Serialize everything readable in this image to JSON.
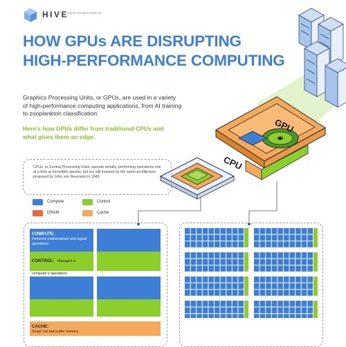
{
  "brand": {
    "name": "HIVE",
    "subtitle": "DIGITAL TECHNOLOGIES LTD"
  },
  "headline": {
    "line1": "HOW GPUs ARE DISRUPTING",
    "line2": "HIGH-PERFORMANCE COMPUTING"
  },
  "intro": "Graphics Processing Units, or GPUs, are used in a variety of high-performance computing applications, from AI training to zooplankton classification.",
  "highlight": "Here's how GPUs differ from traditional CPUs and what gives them an edge.",
  "illustration": {
    "gpu_label": "GPU",
    "cpu_label": "CPU"
  },
  "cpu_note": "CPUs, or Central Processing Units, operate serially, performing operations one at a time at incredible speeds, but are still inspired by the same architecture proposed by John von Neumann in 1945.",
  "legend": {
    "compute": "Compute",
    "control": "Control",
    "dram": "DRAM",
    "cache": "Cache"
  },
  "cpu_diagram": {
    "compute_title": "COMPUTE:",
    "compute_text": "Performs mathematical and logical operations",
    "control_title": "CONTROL:",
    "control_text": "Manages a computer's operations",
    "cache_title": "CACHE:",
    "cache_text": "Small, but fast buffer memory"
  },
  "colors": {
    "compute": "#3d7fd6",
    "control": "#8ccf2c",
    "dram": "#e8683a",
    "cache": "#f5a95a",
    "title": "#3d7fd6",
    "highlight": "#86c128"
  }
}
